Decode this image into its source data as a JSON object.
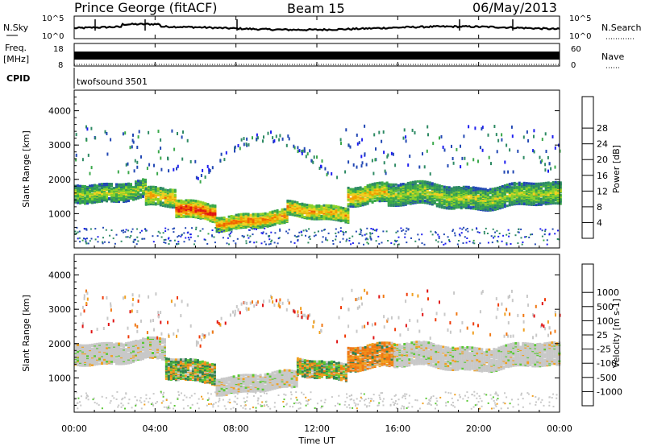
{
  "header": {
    "station": "Prince George (fitACF)",
    "beam": "Beam 15",
    "date": "06/May/2013"
  },
  "noise_panel": {
    "left_label": "N.Sky",
    "right_label": "N.Search",
    "left_ticks": [
      "10^5",
      "10^0"
    ],
    "right_ticks": [
      "10^5",
      "10^0"
    ]
  },
  "freq_panel": {
    "left_label_1": "Freq.",
    "left_label_2": "[MHz]",
    "right_label": "Nave",
    "left_ticks": [
      "18",
      "8"
    ],
    "right_ticks": [
      "60",
      "0"
    ]
  },
  "cpid": {
    "label": "CPID",
    "name": "twofsound",
    "id": "3501"
  },
  "chart_data": [
    {
      "type": "heatmap",
      "name": "power",
      "ylabel": "Slant Range [km]",
      "ylim": [
        0,
        4600
      ],
      "yticks": [
        1000,
        2000,
        3000,
        4000
      ],
      "colorbar_label": "Power [dB]",
      "colorbar_ticks": [
        "4",
        "8",
        "12",
        "16",
        "20",
        "24",
        "28"
      ],
      "colorbar_colors": [
        "#1e1ef0",
        "#2248b4",
        "#2e8a64",
        "#3aa84a",
        "#8cd22a",
        "#f0d020",
        "#f0a000",
        "#f06400",
        "#e01414"
      ],
      "bands": [
        {
          "start_h": 0.0,
          "end_h": 3.5,
          "center_km": 1700,
          "width_km": 520,
          "level": 0.55
        },
        {
          "start_h": 3.5,
          "end_h": 5.0,
          "center_km": 1450,
          "width_km": 520,
          "level": 0.7
        },
        {
          "start_h": 5.0,
          "end_h": 7.0,
          "center_km": 1150,
          "width_km": 480,
          "level": 0.95
        },
        {
          "start_h": 7.0,
          "end_h": 10.5,
          "center_km": 850,
          "width_km": 420,
          "level": 0.8
        },
        {
          "start_h": 10.5,
          "end_h": 13.5,
          "center_km": 1100,
          "width_km": 420,
          "level": 0.75
        },
        {
          "start_h": 13.5,
          "end_h": 15.5,
          "center_km": 1650,
          "width_km": 560,
          "level": 0.7
        },
        {
          "start_h": 15.5,
          "end_h": 24.0,
          "center_km": 1550,
          "width_km": 620,
          "level": 0.55
        }
      ]
    },
    {
      "type": "heatmap",
      "name": "velocity",
      "ylabel": "Slant Range [km]",
      "xlabel": "Time UT",
      "ylim": [
        0,
        4600
      ],
      "yticks": [
        1000,
        2000,
        3000,
        4000
      ],
      "xticks": [
        "00:00",
        "04:00",
        "08:00",
        "12:00",
        "16:00",
        "20:00",
        "00:00"
      ],
      "colorbar_label": "Velocity [m s-1]",
      "colorbar_ticks": [
        "1000",
        "500",
        "100",
        "25",
        "-25",
        "-100",
        "-500",
        "-1000"
      ],
      "colorbar_colors": [
        "#1a3cc8",
        "#2a5aa0",
        "#2e8050",
        "#5ac834",
        "#c8c8c8",
        "#c8c8c8",
        "#f0a020",
        "#f07814",
        "#f03c0a",
        "#e01414"
      ],
      "bands": [
        {
          "start_h": 0.0,
          "end_h": 4.5,
          "center_km": 1800,
          "width_km": 600,
          "kind": "ground"
        },
        {
          "start_h": 4.5,
          "end_h": 7.0,
          "center_km": 1250,
          "width_km": 600,
          "kind": "mixed"
        },
        {
          "start_h": 7.0,
          "end_h": 11.0,
          "center_km": 900,
          "width_km": 500,
          "kind": "ground"
        },
        {
          "start_h": 11.0,
          "end_h": 13.5,
          "center_km": 1300,
          "width_km": 500,
          "kind": "mixed"
        },
        {
          "start_h": 13.5,
          "end_h": 15.8,
          "center_km": 1700,
          "width_km": 700,
          "kind": "negative"
        },
        {
          "start_h": 15.8,
          "end_h": 24.0,
          "center_km": 1650,
          "width_km": 650,
          "kind": "ground"
        }
      ]
    }
  ]
}
